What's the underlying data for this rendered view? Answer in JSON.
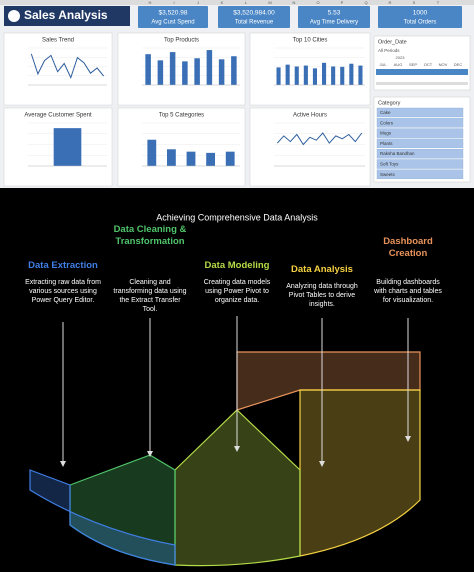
{
  "spreadsheet": {
    "columns": [
      "H",
      "I",
      "J",
      "K",
      "L",
      "M",
      "N",
      "O",
      "P",
      "Q",
      "R",
      "S",
      "T"
    ],
    "title": "Sales Analysis",
    "kpis": [
      {
        "value": "$3,520.98",
        "label": "Avg Cust Spend"
      },
      {
        "value": "$3,520,984.00",
        "label": "Total Revenue"
      },
      {
        "value": "5.53",
        "label": "Avg Time Delivery"
      },
      {
        "value": "1000",
        "label": "Total Orders"
      }
    ],
    "panels": [
      {
        "title": "Sales Trend",
        "type": "line",
        "ylim": [
          0,
          500000
        ],
        "values": [
          420000,
          150000,
          330000,
          400000,
          180000,
          290000,
          100000,
          370000,
          300000,
          160000,
          230000,
          120000
        ]
      },
      {
        "title": "Top Products",
        "type": "bar",
        "ylim": [
          0,
          180000
        ],
        "values": [
          150000,
          120000,
          160000,
          115000,
          130000,
          170000,
          125000,
          140000
        ]
      },
      {
        "title": "Top 10 Cities",
        "type": "bar",
        "ylim": [
          0,
          200000
        ],
        "values": [
          95000,
          110000,
          100000,
          105000,
          90000,
          120000,
          100000,
          98000,
          115000,
          105000
        ]
      },
      {
        "title": "Average Customer Spent",
        "type": "bar",
        "ylim": [
          0,
          4000
        ],
        "values": [
          3520.98
        ]
      },
      {
        "title": "Top 5 Categories",
        "type": "bar",
        "ylim": [
          0,
          1800000
        ],
        "values": [
          1100000,
          700000,
          600000,
          550000,
          600000
        ]
      },
      {
        "title": "Active Hours",
        "type": "line",
        "ylim": [
          0,
          300000
        ],
        "values": [
          160000,
          210000,
          170000,
          220000,
          150000,
          200000,
          180000,
          230000,
          160000,
          210000,
          190000,
          220000,
          170000,
          230000
        ]
      }
    ],
    "date_slicer": {
      "title": "Order_Date",
      "period": "All Periods",
      "year": "2023",
      "months": [
        "JUL",
        "AUG",
        "SEP",
        "OCT",
        "NOV",
        "DEC"
      ]
    },
    "category_slicer": {
      "title": "Category",
      "items": [
        "Cake",
        "Colors",
        "Mugs",
        "Plants",
        "Raksha Bandhan",
        "Soft Toys",
        "Sweets"
      ]
    }
  },
  "infographic": {
    "title": "Achieving Comprehensive Data Analysis",
    "stages": [
      {
        "title": "Data Extraction",
        "description": "Extracting raw data from various sources using Power Query Editor.",
        "color": "#3f7fe6"
      },
      {
        "title": "Data Cleaning & Transformation",
        "description": "Cleaning and transforming data using the Extract Transfer Tool.",
        "color": "#4fc46a"
      },
      {
        "title": "Data Modeling",
        "description": "Creating data models using Power Pivot to organize data.",
        "color": "#b5dc48"
      },
      {
        "title": "Data Analysis",
        "description": "Analyzing data through Pivot Tables to derive insights.",
        "color": "#f5d142"
      },
      {
        "title": "Dashboard Creation",
        "description": "Building dashboards with charts and tables for visualization.",
        "color": "#e8935a"
      }
    ]
  }
}
